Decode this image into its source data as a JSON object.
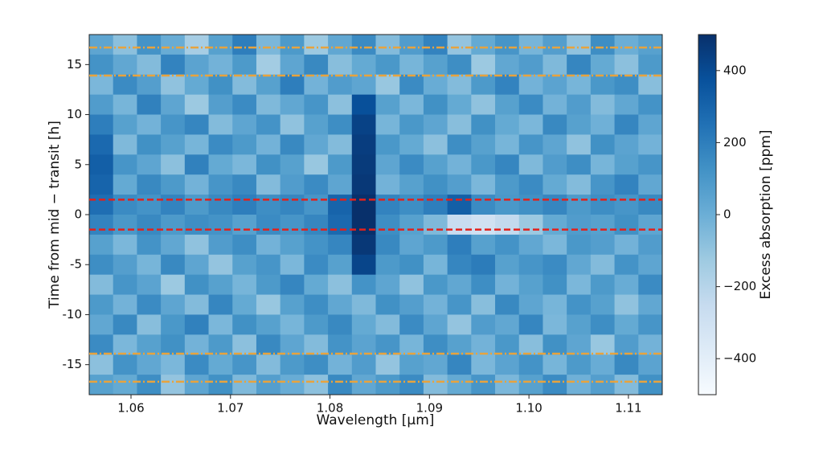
{
  "chart_data": {
    "type": "heatmap",
    "x_label": "Wavelength [μm]",
    "y_label": "Time from mid − transit [h]",
    "colorbar_label": "Excess absorption [ppm]",
    "xlim": [
      1.0558,
      1.1134
    ],
    "ylim": [
      -18,
      18
    ],
    "clim": [
      -500,
      500
    ],
    "xticks": [
      1.06,
      1.07,
      1.08,
      1.09,
      {
        "value": 1.1,
        "label": "1.10"
      },
      1.11
    ],
    "yticks": [
      -15,
      -10,
      -5,
      0,
      5,
      10,
      15
    ],
    "cticks": [
      {
        "value": -400,
        "label": "−400"
      },
      {
        "value": -200,
        "label": "−200"
      },
      0,
      200,
      400
    ],
    "colormap": [
      "#f7fbff",
      "#deebf7",
      "#c6dbef",
      "#9ecae1",
      "#6baed6",
      "#4292c6",
      "#2171b5",
      "#08519c",
      "#08306b"
    ],
    "x": [
      1.057,
      1.0594,
      1.0618,
      1.0642,
      1.0666,
      1.069,
      1.0714,
      1.0738,
      1.0762,
      1.0786,
      1.081,
      1.0834,
      1.0858,
      1.0882,
      1.0906,
      1.093,
      1.0954,
      1.0978,
      1.1002,
      1.1026,
      1.105,
      1.1074,
      1.1098,
      1.1122
    ],
    "y": [
      17,
      15,
      13,
      11,
      9,
      7,
      5,
      3,
      1,
      -1,
      -3,
      -5,
      -7,
      -9,
      -11,
      -13,
      -15,
      -17
    ],
    "z": [
      [
        40,
        -80,
        120,
        10,
        -150,
        60,
        200,
        -40,
        90,
        -120,
        30,
        150,
        -60,
        80,
        180,
        -100,
        20,
        110,
        -30,
        70,
        -90,
        140,
        0,
        60
      ],
      [
        120,
        30,
        -60,
        180,
        50,
        -20,
        90,
        -140,
        40,
        160,
        -70,
        20,
        100,
        -30,
        60,
        140,
        -120,
        30,
        80,
        -50,
        170,
        20,
        -80,
        90
      ],
      [
        -40,
        150,
        70,
        -90,
        20,
        130,
        -60,
        60,
        200,
        -20,
        80,
        40,
        -110,
        150,
        10,
        -60,
        90,
        180,
        -20,
        50,
        -30,
        100,
        140,
        -70
      ],
      [
        80,
        -30,
        190,
        40,
        -120,
        70,
        150,
        -50,
        30,
        110,
        -80,
        380,
        60,
        -40,
        130,
        20,
        -90,
        60,
        150,
        -20,
        80,
        -60,
        30,
        120
      ],
      [
        200,
        60,
        -20,
        110,
        170,
        -60,
        40,
        120,
        -90,
        60,
        140,
        430,
        -30,
        100,
        40,
        -70,
        130,
        20,
        -40,
        160,
        60,
        -10,
        170,
        40
      ],
      [
        280,
        -50,
        130,
        60,
        -30,
        150,
        90,
        -20,
        160,
        30,
        -60,
        450,
        100,
        20,
        -80,
        140,
        60,
        -30,
        110,
        40,
        -90,
        130,
        50,
        -20
      ],
      [
        320,
        110,
        40,
        -80,
        190,
        20,
        -40,
        130,
        60,
        -110,
        90,
        460,
        40,
        150,
        60,
        -20,
        100,
        170,
        -50,
        80,
        140,
        -30,
        60,
        110
      ],
      [
        300,
        20,
        160,
        90,
        -20,
        110,
        160,
        -60,
        80,
        150,
        40,
        470,
        -20,
        60,
        130,
        70,
        -40,
        90,
        150,
        20,
        -60,
        110,
        180,
        30
      ],
      [
        260,
        150,
        120,
        180,
        90,
        160,
        200,
        140,
        170,
        110,
        300,
        500,
        180,
        140,
        200,
        320,
        150,
        100,
        130,
        170,
        90,
        140,
        110,
        160
      ],
      [
        180,
        100,
        160,
        90,
        140,
        120,
        60,
        150,
        110,
        170,
        280,
        500,
        140,
        60,
        -50,
        -260,
        -300,
        -240,
        -120,
        20,
        80,
        60,
        130,
        40
      ],
      [
        60,
        -40,
        120,
        30,
        -90,
        80,
        140,
        -20,
        60,
        120,
        170,
        470,
        160,
        40,
        90,
        200,
        60,
        120,
        30,
        -40,
        100,
        70,
        -20,
        80
      ],
      [
        140,
        70,
        -30,
        160,
        40,
        -100,
        60,
        110,
        -40,
        150,
        60,
        420,
        90,
        130,
        -30,
        170,
        210,
        60,
        110,
        150,
        30,
        -60,
        120,
        40
      ],
      [
        -60,
        110,
        50,
        -120,
        130,
        60,
        -30,
        90,
        170,
        20,
        -80,
        120,
        40,
        -90,
        100,
        30,
        140,
        -20,
        60,
        130,
        -40,
        90,
        10,
        150
      ],
      [
        90,
        -20,
        150,
        40,
        -60,
        170,
        20,
        -110,
        60,
        140,
        30,
        -50,
        130,
        70,
        -20,
        110,
        -70,
        160,
        40,
        -30,
        120,
        60,
        -90,
        30
      ],
      [
        30,
        160,
        -70,
        100,
        190,
        -40,
        130,
        60,
        -30,
        90,
        160,
        20,
        -60,
        150,
        40,
        -100,
        80,
        30,
        170,
        -40,
        60,
        140,
        20,
        110
      ],
      [
        150,
        -40,
        60,
        130,
        -20,
        90,
        -80,
        160,
        40,
        -60,
        120,
        50,
        110,
        -30,
        140,
        60,
        -20,
        100,
        -70,
        130,
        40,
        -110,
        80,
        -20
      ],
      [
        -80,
        120,
        30,
        -40,
        150,
        20,
        110,
        -60,
        90,
        140,
        -20,
        80,
        -100,
        60,
        30,
        170,
        -40,
        50,
        120,
        -30,
        90,
        10,
        160,
        50
      ],
      [
        60,
        20,
        140,
        -100,
        40,
        130,
        -50,
        70,
        10,
        -80,
        160,
        30,
        90,
        150,
        -60,
        20,
        110,
        -40,
        60,
        150,
        -10,
        70,
        -60,
        130
      ]
    ],
    "hlines": [
      {
        "y": 16.7,
        "color": "#e8a33d",
        "style": "dashdot"
      },
      {
        "y": 13.9,
        "color": "#e8a33d",
        "style": "dashdot"
      },
      {
        "y": -13.9,
        "color": "#e8a33d",
        "style": "dashdot"
      },
      {
        "y": -16.7,
        "color": "#e8a33d",
        "style": "dashdot"
      },
      {
        "y": 1.5,
        "color": "#e3201b",
        "style": "dashed"
      },
      {
        "y": -1.5,
        "color": "#e3201b",
        "style": "dashed"
      }
    ]
  }
}
